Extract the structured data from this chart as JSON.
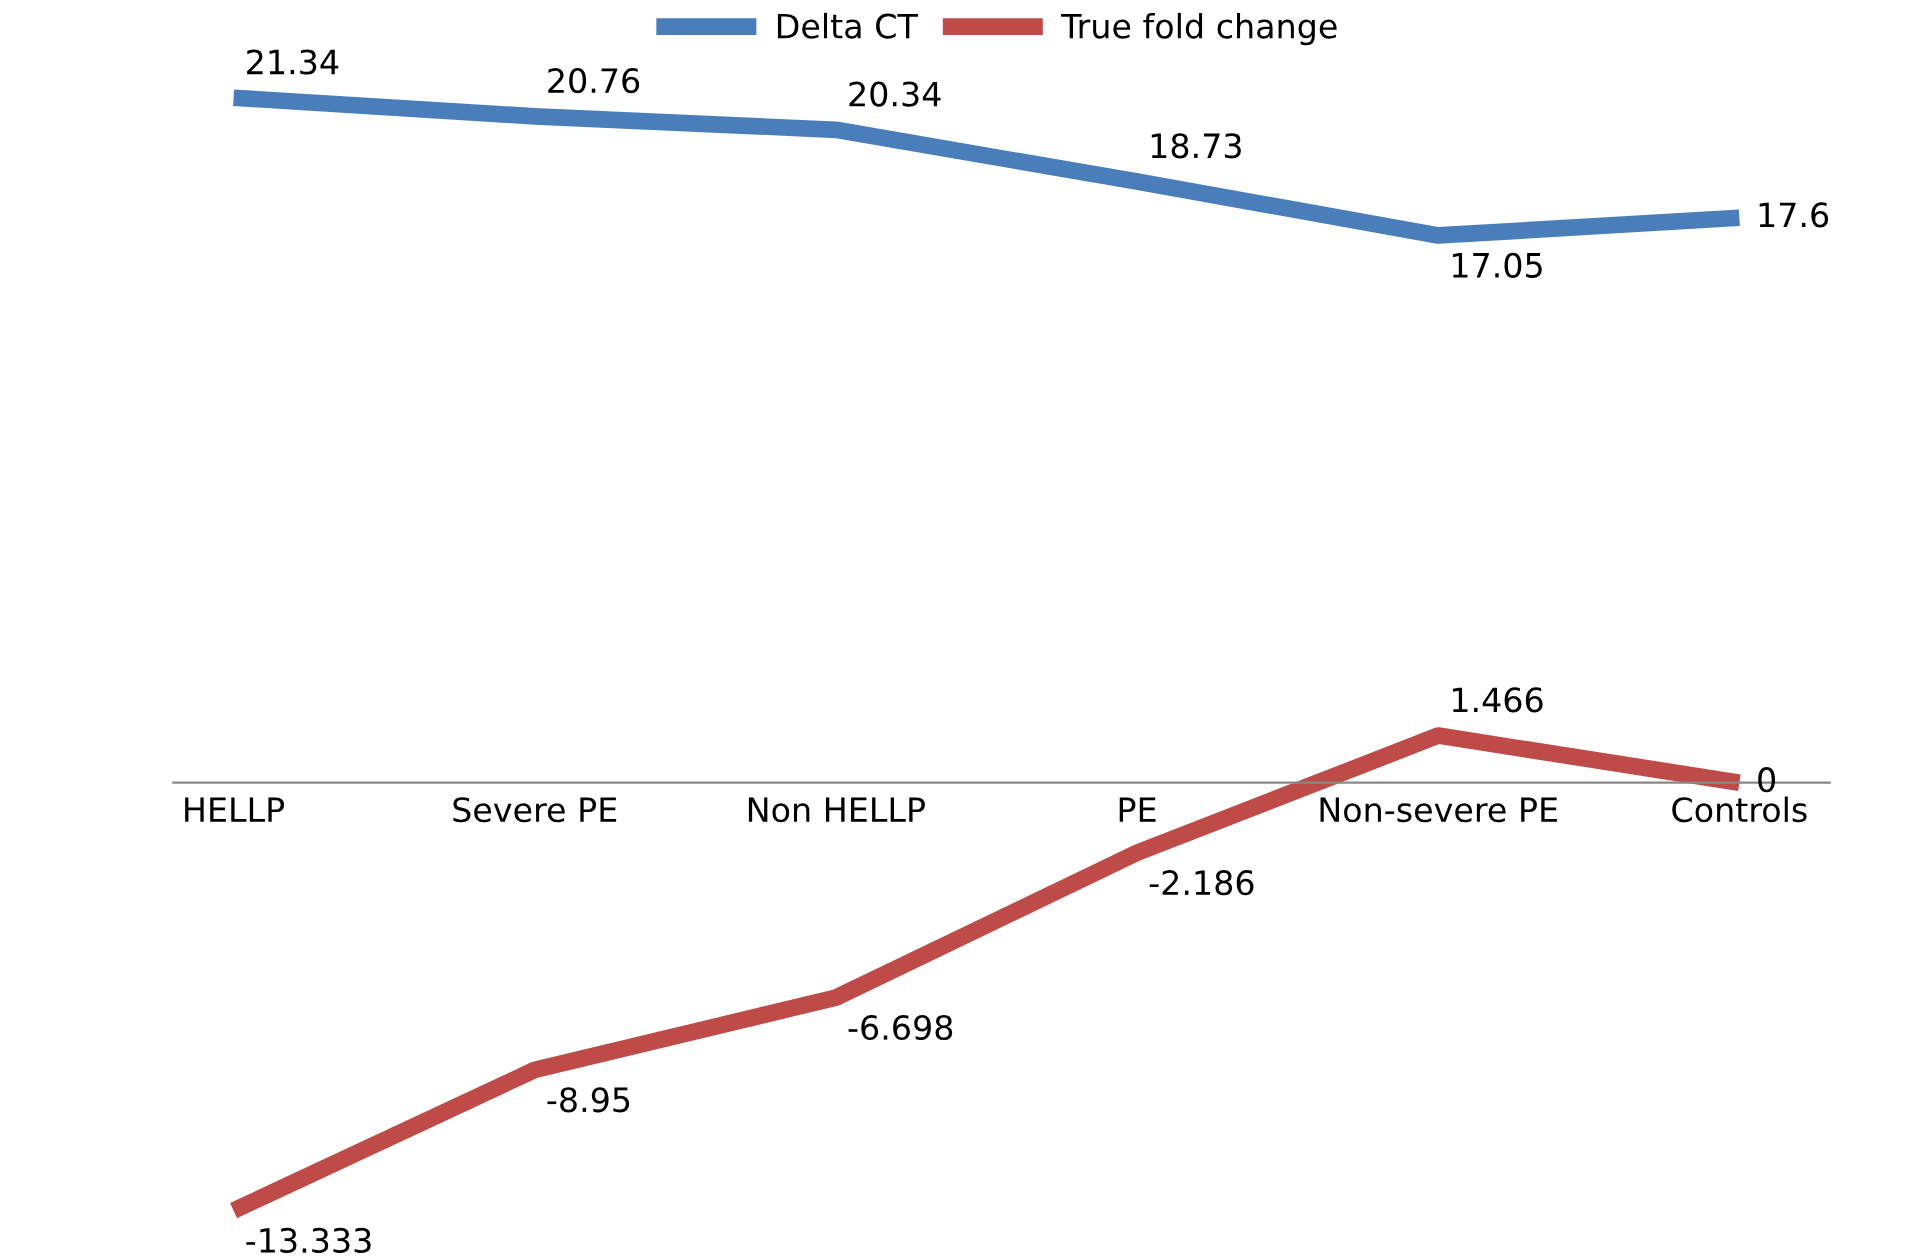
{
  "chart_data": {
    "type": "line",
    "categories": [
      "HELLP",
      "Severe PE",
      "Non HELLP",
      "PE",
      "Non-severe PE",
      "Controls"
    ],
    "series": [
      {
        "name": "Delta CT",
        "color": "#4a7ebb",
        "values": [
          21.34,
          20.76,
          20.34,
          18.73,
          17.05,
          17.6
        ]
      },
      {
        "name": "True fold change",
        "color": "#be4b48",
        "values": [
          -13.333,
          -8.95,
          -6.698,
          -2.186,
          1.466,
          0
        ]
      }
    ],
    "data_labels": true,
    "legend": "top",
    "grid": false,
    "marker": "none",
    "line_style": "solid"
  }
}
